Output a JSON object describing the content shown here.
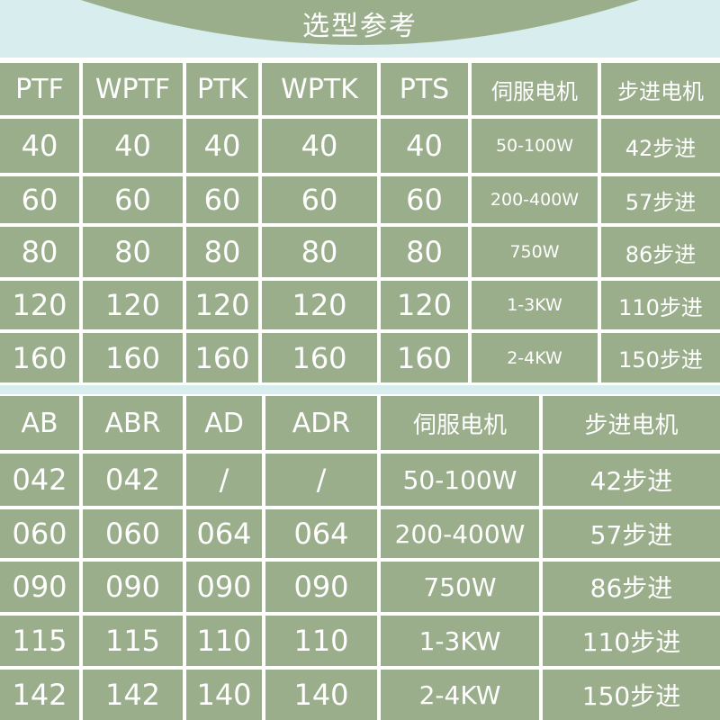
{
  "header": {
    "title": "选型参考"
  },
  "table1": {
    "header": [
      "PTF",
      "WPTF",
      "PTK",
      "WPTK",
      "PTS",
      "伺服电机",
      "步进电机"
    ],
    "rows": [
      [
        "40",
        "40",
        "40",
        "40",
        "40",
        "50-100W",
        "42步进"
      ],
      [
        "60",
        "60",
        "60",
        "60",
        "60",
        "200-400W",
        "57步进"
      ],
      [
        "80",
        "80",
        "80",
        "80",
        "80",
        "750W",
        "86步进"
      ],
      [
        "120",
        "120",
        "120",
        "120",
        "120",
        "1-3KW",
        "110步进"
      ],
      [
        "160",
        "160",
        "160",
        "160",
        "160",
        "2-4KW",
        "150步进"
      ]
    ]
  },
  "table2": {
    "header": [
      "AB",
      "ABR",
      "AD",
      "ADR",
      "伺服电机",
      "步进电机"
    ],
    "rows": [
      [
        "042",
        "042",
        "/",
        "/",
        "50-100W",
        "42步进"
      ],
      [
        "060",
        "060",
        "064",
        "064",
        "200-400W",
        "57步进"
      ],
      [
        "090",
        "090",
        "090",
        "090",
        "750W",
        "86步进"
      ],
      [
        "115",
        "115",
        "110",
        "110",
        "1-3KW",
        "110步进"
      ],
      [
        "142",
        "142",
        "140",
        "140",
        "2-4KW",
        "150步进"
      ]
    ]
  }
}
